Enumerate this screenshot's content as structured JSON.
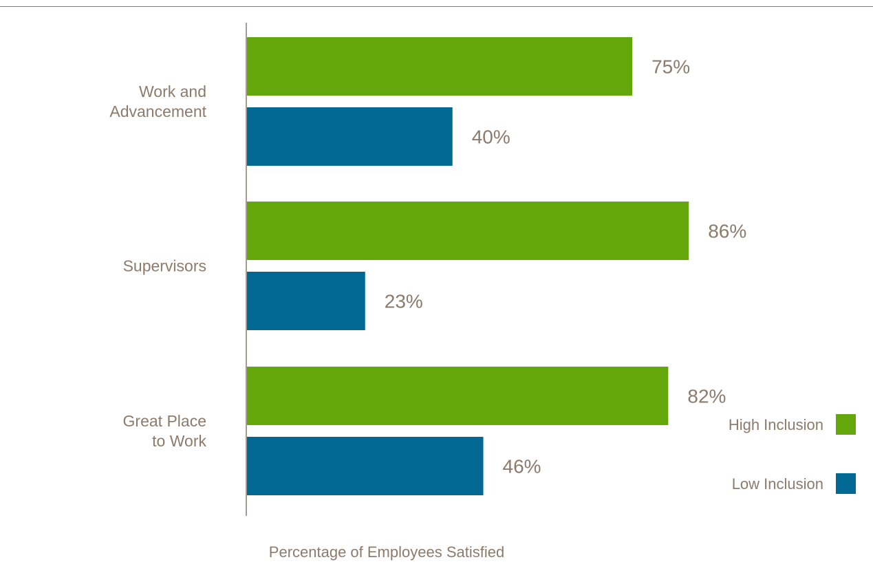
{
  "chart_data": {
    "type": "bar",
    "orientation": "horizontal",
    "categories": [
      [
        "Work and",
        "Advancement"
      ],
      [
        "Supervisors"
      ],
      [
        "Great Place",
        "to Work"
      ]
    ],
    "series": [
      {
        "name": "High Inclusion",
        "color": "#63a70a",
        "values": [
          75,
          86,
          82
        ],
        "labels": [
          "75%",
          "86%",
          "82%"
        ]
      },
      {
        "name": "Low Inclusion",
        "color": "#006892",
        "values": [
          40,
          23,
          46
        ],
        "labels": [
          "40%",
          "23%",
          "46%"
        ]
      }
    ],
    "xlabel": "Percentage of Employees Satisfied",
    "ylabel": "",
    "xlim": [
      0,
      100
    ],
    "grid": false,
    "legend_position": "bottom-right"
  },
  "colors": {
    "text": "#8c7b6b",
    "axis": "#8c7b6b"
  }
}
